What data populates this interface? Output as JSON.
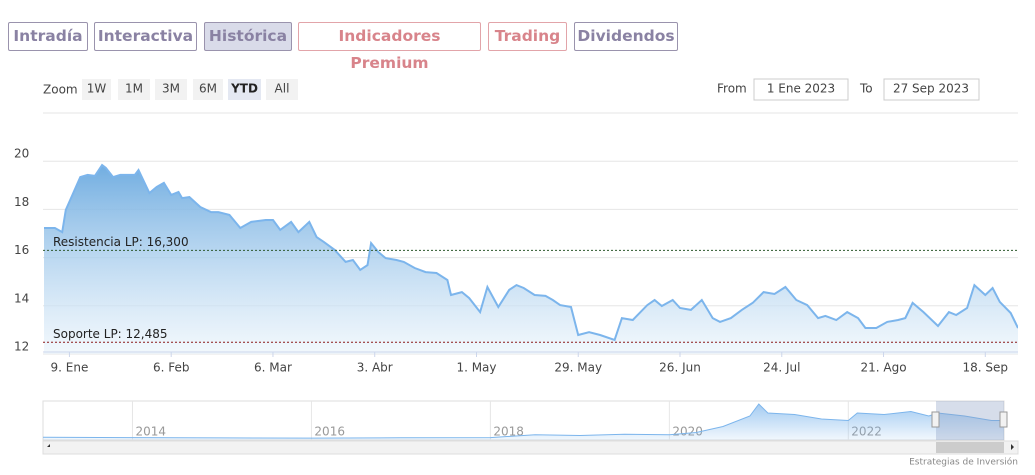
{
  "ui": {
    "tabs": [
      "Intradía",
      "Interactiva",
      "Histórica",
      "Indicadores Premium",
      "Trading",
      "Dividendos"
    ],
    "zoom_label": "Zoom",
    "zoom_buttons": [
      "1W",
      "1M",
      "3M",
      "6M",
      "YTD",
      "All"
    ],
    "from_label": "From",
    "from_value": "1 Ene 2023",
    "to_label": "To",
    "to_value": "27 Sep 2023",
    "credit": "Estrategias de Inversión"
  },
  "chart_data": {
    "type": "area",
    "color": "#7cb5ec",
    "x": [
      1,
      4,
      6,
      7,
      11,
      13,
      15,
      17,
      18,
      20,
      22,
      26,
      27,
      30,
      32,
      34,
      36,
      38,
      39,
      41,
      44,
      47,
      49,
      52,
      55,
      58,
      62,
      64,
      66,
      69,
      71,
      74,
      76,
      78,
      81,
      84,
      86,
      88,
      90,
      91,
      93,
      95,
      98,
      100,
      103,
      106,
      109,
      112,
      113,
      116,
      118,
      121,
      123,
      126,
      129,
      131,
      133,
      136,
      139,
      141,
      143,
      146,
      148,
      151,
      154,
      158,
      160,
      163,
      167,
      169,
      171,
      174,
      176,
      179,
      182,
      185,
      187,
      190,
      193,
      196,
      199,
      202,
      205,
      208,
      211,
      214,
      216,
      219,
      222,
      225,
      227,
      230,
      233,
      236,
      238,
      240,
      243,
      247,
      250,
      252,
      255,
      257,
      260,
      262,
      264,
      267,
      269
    ],
    "values": [
      17.23,
      17.23,
      17.06,
      17.98,
      19.34,
      19.43,
      19.39,
      19.84,
      19.72,
      19.34,
      19.43,
      19.43,
      19.63,
      18.68,
      18.93,
      19.1,
      18.6,
      18.72,
      18.47,
      18.51,
      18.1,
      17.89,
      17.89,
      17.77,
      17.23,
      17.48,
      17.56,
      17.56,
      17.15,
      17.48,
      17.06,
      17.48,
      16.85,
      16.65,
      16.32,
      15.82,
      15.9,
      15.49,
      15.69,
      16.6,
      16.23,
      15.98,
      15.9,
      15.82,
      15.57,
      15.4,
      15.36,
      15.07,
      14.45,
      14.57,
      14.32,
      13.74,
      14.78,
      13.95,
      14.66,
      14.86,
      14.74,
      14.45,
      14.41,
      14.24,
      14.03,
      13.95,
      12.79,
      12.91,
      12.79,
      12.58,
      13.49,
      13.41,
      14.03,
      14.24,
      13.99,
      14.24,
      13.91,
      13.83,
      14.24,
      13.49,
      13.33,
      13.49,
      13.83,
      14.12,
      14.57,
      14.49,
      14.78,
      14.24,
      14.03,
      13.49,
      13.58,
      13.41,
      13.74,
      13.49,
      13.08,
      13.08,
      13.33,
      13.41,
      13.49,
      14.12,
      13.74,
      13.16,
      13.74,
      13.62,
      13.91,
      14.86,
      14.45,
      14.74,
      14.16,
      13.7,
      13.08
    ],
    "xlim": [
      1,
      269
    ],
    "xticks": [
      {
        "value": 8,
        "label": "9. Ene"
      },
      {
        "value": 36,
        "label": "6. Feb"
      },
      {
        "value": 64,
        "label": "6. Mar"
      },
      {
        "value": 92,
        "label": "3. Abr"
      },
      {
        "value": 120,
        "label": "1. May"
      },
      {
        "value": 148,
        "label": "29. May"
      },
      {
        "value": 176,
        "label": "26. Jun"
      },
      {
        "value": 204,
        "label": "24. Jul"
      },
      {
        "value": 232,
        "label": "21. Ago"
      },
      {
        "value": 260,
        "label": "18. Sep"
      }
    ],
    "ylim": [
      12,
      22
    ],
    "yticks": [
      12,
      14,
      16,
      18,
      20
    ],
    "grid": true,
    "annotations": [
      {
        "label": "Resistencia LP: 16,300",
        "value": 16.3,
        "color": "#2f5a2f"
      },
      {
        "label": "Soporte LP: 12,485",
        "value": 12.485,
        "color": "#8b1a1a"
      }
    ],
    "navigator": {
      "x": [
        2013,
        2014,
        2015,
        2016,
        2017,
        2018,
        2018.5,
        2019,
        2019.5,
        2020,
        2020.3,
        2020.6,
        2020.9,
        2021,
        2021.1,
        2021.4,
        2021.7,
        2022,
        2022.1,
        2022.4,
        2022.7,
        2022.9,
        2023,
        2023.3,
        2023.6,
        2023.74
      ],
      "values": [
        1.8,
        1.6,
        1.4,
        1.3,
        1.5,
        1.6,
        3.5,
        3,
        3.8,
        3.5,
        5,
        9,
        16,
        24,
        18,
        17,
        14,
        13,
        18,
        17,
        19,
        16,
        18,
        16,
        13,
        13
      ],
      "xlim": [
        2013,
        2023.74
      ],
      "ylim": [
        0,
        26
      ],
      "xticks": [
        2014,
        2016,
        2018,
        2020,
        2022
      ]
    }
  }
}
